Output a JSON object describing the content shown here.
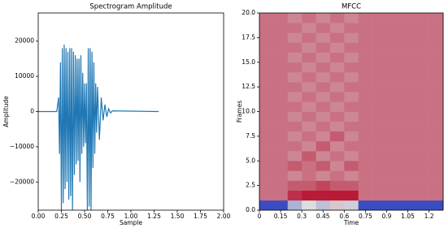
{
  "chart_data": [
    {
      "type": "line",
      "title": "Spectrogram Amplitude",
      "xlabel": "Sample",
      "ylabel": "Amplitude",
      "color": "#1f77b4",
      "x": [
        0,
        0.2,
        0.22,
        0.23,
        0.24,
        0.25,
        0.26,
        0.27,
        0.28,
        0.29,
        0.3,
        0.31,
        0.32,
        0.33,
        0.34,
        0.35,
        0.36,
        0.37,
        0.38,
        0.39,
        0.4,
        0.41,
        0.42,
        0.43,
        0.44,
        0.45,
        0.46,
        0.47,
        0.48,
        0.49,
        0.5,
        0.51,
        0.52,
        0.53,
        0.54,
        0.55,
        0.56,
        0.57,
        0.58,
        0.59,
        0.6,
        0.61,
        0.62,
        0.63,
        0.64,
        0.66,
        0.68,
        0.7,
        0.72,
        0.74,
        0.76,
        0.78,
        0.8,
        1.3
      ],
      "values": [
        0,
        0,
        4000,
        -12000,
        14000,
        -28000,
        18000,
        -26000,
        19000,
        -22000,
        18000,
        -20000,
        17000,
        -25000,
        18000,
        -24000,
        18000,
        -28000,
        17000,
        -18000,
        16000,
        -15000,
        15000,
        -14000,
        15000,
        -20000,
        16000,
        -12000,
        11000,
        -10000,
        8000,
        -9000,
        8000,
        -28000,
        18000,
        -27000,
        18000,
        -28000,
        17000,
        -16000,
        14000,
        -12000,
        8000,
        -6000,
        7000,
        -8000,
        4000,
        -2500,
        2000,
        -1500,
        800,
        -400,
        200,
        0
      ],
      "xlim": [
        0,
        2
      ],
      "ylim": [
        -28000,
        28000
      ],
      "xticks": [
        {
          "value": 0,
          "label": "0.00"
        },
        {
          "value": 0.25,
          "label": "0.25"
        },
        {
          "value": 0.5,
          "label": "0.50"
        },
        {
          "value": 0.75,
          "label": "0.75"
        },
        {
          "value": 1,
          "label": "1.00"
        },
        {
          "value": 1.25,
          "label": "1.25"
        },
        {
          "value": 1.5,
          "label": "1.50"
        },
        {
          "value": 1.75,
          "label": "1.75"
        },
        {
          "value": 2,
          "label": "2.00"
        }
      ],
      "yticks": [
        {
          "value": -20000,
          "label": "−20000"
        },
        {
          "value": -10000,
          "label": "−10000"
        },
        0,
        10000,
        20000
      ]
    },
    {
      "type": "heatmap",
      "title": "MFCC",
      "xlabel": "Time",
      "ylabel": "Frames",
      "clim": [
        -10,
        10
      ],
      "xlim": [
        0,
        1.3
      ],
      "ylim": [
        0,
        20
      ],
      "xticks": [
        0,
        0.15,
        0.3,
        0.45,
        0.6,
        0.75,
        0.9,
        1.05,
        1.2
      ],
      "yticks": [
        {
          "value": 0,
          "label": "0.0"
        },
        {
          "value": 2.5,
          "label": "2.5"
        },
        {
          "value": 5,
          "label": "5.0"
        },
        {
          "value": 7.5,
          "label": "7.5"
        },
        {
          "value": 10,
          "label": "10.0"
        },
        {
          "value": 12.5,
          "label": "12.5"
        },
        {
          "value": 15,
          "label": "15.0"
        },
        {
          "value": 17.5,
          "label": "17.5"
        },
        {
          "value": 20,
          "label": "20.0"
        }
      ],
      "z": [
        [
          -10,
          -10,
          -3,
          0,
          -2,
          1,
          -1,
          -10,
          -10,
          -10,
          -10,
          -10,
          -10
        ],
        [
          5,
          5,
          8,
          9,
          9,
          9,
          9,
          5,
          5,
          5,
          5,
          5,
          5
        ],
        [
          5,
          5,
          6,
          6,
          7,
          6,
          6,
          5,
          5,
          5,
          5,
          5,
          5
        ],
        [
          5,
          5,
          4,
          5,
          4,
          5,
          4,
          5,
          5,
          5,
          5,
          5,
          5
        ],
        [
          5,
          5,
          6,
          5,
          6,
          4,
          6,
          5,
          5,
          5,
          5,
          5,
          5
        ],
        [
          5,
          5,
          4,
          6,
          4,
          5,
          4,
          5,
          5,
          5,
          5,
          5,
          5
        ],
        [
          5,
          5,
          5,
          4,
          6,
          4,
          5,
          5,
          5,
          5,
          5,
          5,
          5
        ],
        [
          5,
          5,
          4,
          5,
          4,
          6,
          4,
          5,
          5,
          5,
          5,
          5,
          5
        ],
        [
          5,
          5,
          5,
          4,
          5,
          4,
          5,
          5,
          5,
          5,
          5,
          5,
          5
        ],
        [
          5,
          5,
          4,
          5,
          4,
          5,
          4,
          5,
          5,
          5,
          5,
          5,
          5
        ],
        [
          5,
          5,
          5,
          4,
          5,
          4,
          5,
          5,
          5,
          5,
          5,
          5,
          5
        ],
        [
          5,
          5,
          4,
          5,
          4,
          5,
          4,
          5,
          5,
          5,
          5,
          5,
          5
        ],
        [
          5,
          5,
          5,
          4,
          5,
          4,
          5,
          5,
          5,
          5,
          5,
          5,
          5
        ],
        [
          5,
          5,
          4,
          5,
          4,
          5,
          4,
          5,
          5,
          5,
          5,
          5,
          5
        ],
        [
          5,
          5,
          5,
          4,
          5,
          4,
          5,
          5,
          5,
          5,
          5,
          5,
          5
        ],
        [
          5,
          5,
          4,
          5,
          4,
          5,
          4,
          5,
          5,
          5,
          5,
          5,
          5
        ],
        [
          5,
          5,
          5,
          4,
          5,
          4,
          5,
          5,
          5,
          5,
          5,
          5,
          5
        ],
        [
          5,
          5,
          4,
          5,
          4,
          5,
          4,
          5,
          5,
          5,
          5,
          5,
          5
        ],
        [
          5,
          5,
          5,
          4,
          5,
          4,
          5,
          5,
          5,
          5,
          5,
          5,
          5
        ],
        [
          5,
          5,
          4,
          5,
          4,
          5,
          4,
          5,
          5,
          5,
          5,
          5,
          5
        ]
      ]
    }
  ]
}
